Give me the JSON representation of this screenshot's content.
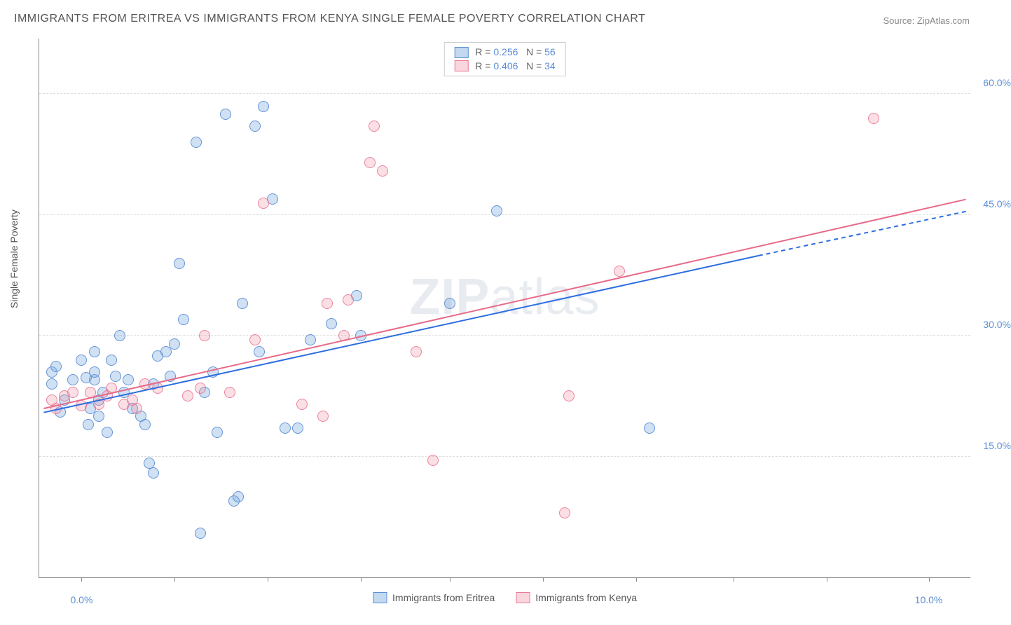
{
  "title": "IMMIGRANTS FROM ERITREA VS IMMIGRANTS FROM KENYA SINGLE FEMALE POVERTY CORRELATION CHART",
  "source": "Source: ZipAtlas.com",
  "y_axis_label": "Single Female Poverty",
  "watermark_a": "ZIP",
  "watermark_b": "atlas",
  "chart": {
    "type": "scatter",
    "background_color": "#ffffff",
    "grid_color": "#dddddd",
    "axis_color": "#888888",
    "xlim": [
      -0.5,
      10.5
    ],
    "ylim": [
      0,
      67
    ],
    "x_ticks": [
      0.0,
      10.0
    ],
    "x_tick_minor": [
      1.1,
      2.2,
      3.3,
      4.35,
      5.45,
      6.55,
      7.7,
      8.8
    ],
    "y_ticks": [
      15.0,
      30.0,
      45.0,
      60.0
    ],
    "x_tick_fmt": "{v}%",
    "y_tick_fmt": "{v}%",
    "tick_label_color": "#5b8dd6",
    "tick_fontsize": 14,
    "title_fontsize": 16,
    "title_color": "#555555",
    "marker_radius": 8,
    "series": [
      {
        "name": "Immigrants from Eritrea",
        "marker_fill": "rgba(120,170,220,0.35)",
        "marker_stroke": "#5b8dd6",
        "R": "0.256",
        "N": "56",
        "trend": {
          "x1": -0.45,
          "y1": 20.5,
          "x2": 8.0,
          "y2": 40.0,
          "dash_x2": 10.45,
          "dash_y2": 45.5,
          "color": "#2d6de0",
          "width": 2
        },
        "points": [
          [
            -0.35,
            25.5
          ],
          [
            -0.35,
            24.0
          ],
          [
            -0.3,
            26.2
          ],
          [
            -0.25,
            20.5
          ],
          [
            -0.2,
            22.0
          ],
          [
            -0.1,
            24.5
          ],
          [
            0.0,
            27.0
          ],
          [
            0.05,
            24.8
          ],
          [
            0.08,
            19.0
          ],
          [
            0.1,
            21.0
          ],
          [
            0.15,
            24.5
          ],
          [
            0.15,
            25.5
          ],
          [
            0.15,
            28.0
          ],
          [
            0.2,
            20.0
          ],
          [
            0.2,
            22.0
          ],
          [
            0.25,
            23.0
          ],
          [
            0.3,
            18.0
          ],
          [
            0.35,
            27.0
          ],
          [
            0.4,
            25.0
          ],
          [
            0.45,
            30.0
          ],
          [
            0.5,
            23.0
          ],
          [
            0.55,
            24.5
          ],
          [
            0.6,
            21.0
          ],
          [
            0.7,
            20.0
          ],
          [
            0.75,
            19.0
          ],
          [
            0.8,
            14.2
          ],
          [
            0.85,
            13.0
          ],
          [
            0.85,
            24.0
          ],
          [
            0.9,
            27.5
          ],
          [
            1.0,
            28.0
          ],
          [
            1.05,
            25.0
          ],
          [
            1.1,
            29.0
          ],
          [
            1.15,
            39.0
          ],
          [
            1.2,
            32.0
          ],
          [
            1.35,
            54.0
          ],
          [
            1.4,
            5.5
          ],
          [
            1.45,
            23.0
          ],
          [
            1.55,
            25.5
          ],
          [
            1.6,
            18.0
          ],
          [
            1.7,
            57.5
          ],
          [
            1.8,
            9.5
          ],
          [
            1.85,
            10.0
          ],
          [
            1.9,
            34.0
          ],
          [
            2.05,
            56.0
          ],
          [
            2.1,
            28.0
          ],
          [
            2.15,
            58.5
          ],
          [
            2.25,
            47.0
          ],
          [
            2.4,
            18.5
          ],
          [
            2.55,
            18.5
          ],
          [
            2.7,
            29.5
          ],
          [
            2.95,
            31.5
          ],
          [
            3.25,
            35.0
          ],
          [
            3.3,
            30.0
          ],
          [
            4.35,
            34.0
          ],
          [
            4.9,
            45.5
          ],
          [
            6.7,
            18.5
          ]
        ]
      },
      {
        "name": "Immigrants from Kenya",
        "marker_fill": "rgba(240,150,170,0.3)",
        "marker_stroke": "#e97a94",
        "R": "0.406",
        "N": "34",
        "trend": {
          "x1": -0.45,
          "y1": 21.0,
          "x2": 10.45,
          "y2": 47.0,
          "color": "#e86a88",
          "width": 2
        },
        "points": [
          [
            -0.35,
            22.0
          ],
          [
            -0.3,
            21.0
          ],
          [
            -0.2,
            22.5
          ],
          [
            -0.1,
            23.0
          ],
          [
            0.0,
            21.3
          ],
          [
            0.1,
            23.0
          ],
          [
            0.2,
            21.5
          ],
          [
            0.3,
            22.5
          ],
          [
            0.35,
            23.5
          ],
          [
            0.5,
            21.5
          ],
          [
            0.6,
            22.0
          ],
          [
            0.65,
            21.0
          ],
          [
            0.75,
            24.0
          ],
          [
            0.9,
            23.5
          ],
          [
            1.25,
            22.5
          ],
          [
            1.4,
            23.5
          ],
          [
            1.45,
            30.0
          ],
          [
            1.75,
            23.0
          ],
          [
            2.05,
            29.5
          ],
          [
            2.15,
            46.5
          ],
          [
            2.6,
            21.5
          ],
          [
            2.85,
            20.0
          ],
          [
            2.9,
            34.0
          ],
          [
            3.1,
            30.0
          ],
          [
            3.15,
            34.5
          ],
          [
            3.4,
            51.5
          ],
          [
            3.45,
            56.0
          ],
          [
            3.55,
            50.5
          ],
          [
            3.95,
            28.0
          ],
          [
            4.15,
            14.5
          ],
          [
            5.7,
            8.0
          ],
          [
            5.75,
            22.5
          ],
          [
            6.35,
            38.0
          ],
          [
            9.35,
            57.0
          ]
        ]
      }
    ]
  },
  "legend_top": {
    "r_label": "R",
    "n_label": "N"
  },
  "legend_bottom": [
    {
      "series_idx": 0
    },
    {
      "series_idx": 1
    }
  ]
}
